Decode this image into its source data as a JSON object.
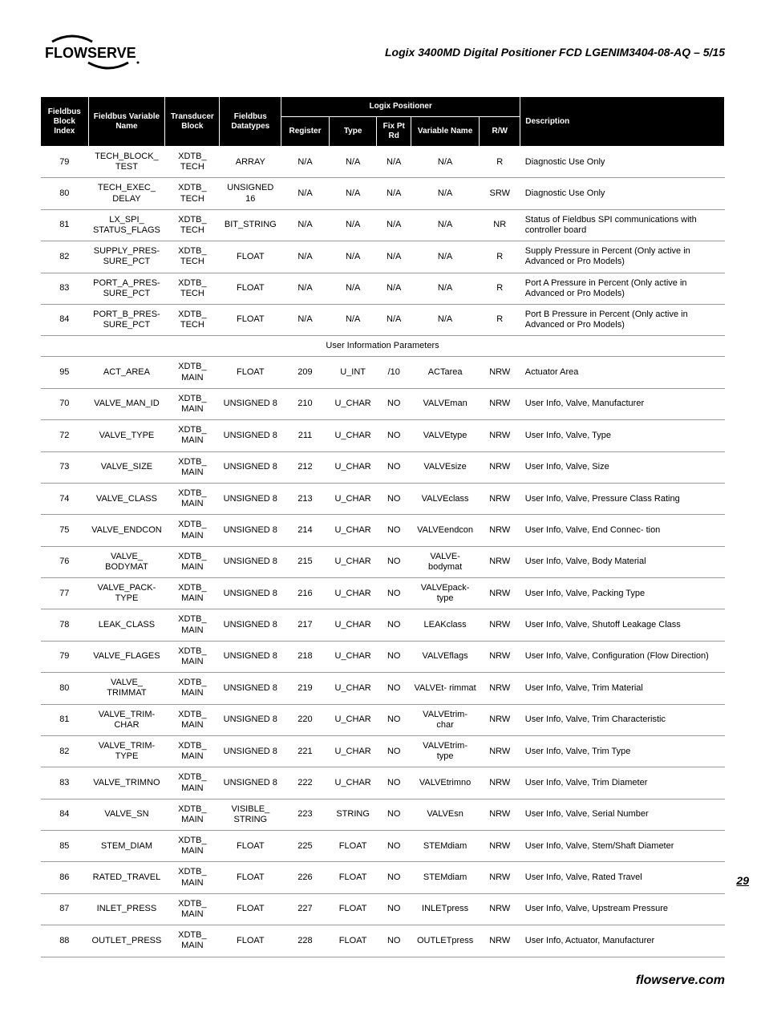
{
  "doc_title": "Logix 3400MD Digital Positioner FCD LGENIM3404-08-AQ – 5/15",
  "page_number": "29",
  "footer_text": "flowserve.com",
  "logo_text": "FLOWSERVE",
  "table": {
    "group_header": "Logix Positioner",
    "columns": [
      "Fieldbus Block Index",
      "Fieldbus Variable Name",
      "Transducer Block",
      "Fieldbus Datatypes",
      "Register",
      "Type",
      "Fix Pt Rd",
      "Variable Name",
      "R/W",
      "Description"
    ],
    "section_label": "User Information Parameters",
    "rows_a": [
      {
        "idx": "79",
        "varname": "TECH_BLOCK_ TEST",
        "block": "XDTB_ TECH",
        "dtype": "ARRAY",
        "reg": "N/A",
        "type": "N/A",
        "fix": "N/A",
        "vname": "N/A",
        "rw": "R",
        "desc": "Diagnostic Use Only"
      },
      {
        "idx": "80",
        "varname": "TECH_EXEC_ DELAY",
        "block": "XDTB_ TECH",
        "dtype": "UNSIGNED 16",
        "reg": "N/A",
        "type": "N/A",
        "fix": "N/A",
        "vname": "N/A",
        "rw": "SRW",
        "desc": "Diagnostic Use Only"
      },
      {
        "idx": "81",
        "varname": "LX_SPI_ STATUS_FLAGS",
        "block": "XDTB_ TECH",
        "dtype": "BIT_STRING",
        "reg": "N/A",
        "type": "N/A",
        "fix": "N/A",
        "vname": "N/A",
        "rw": "NR",
        "desc": "Status of Fieldbus SPI communications with controller board"
      },
      {
        "idx": "82",
        "varname": "SUPPLY_PRES- SURE_PCT",
        "block": "XDTB_ TECH",
        "dtype": "FLOAT",
        "reg": "N/A",
        "type": "N/A",
        "fix": "N/A",
        "vname": "N/A",
        "rw": "R",
        "desc": "Supply Pressure in Percent (Only active in Advanced or Pro Models)"
      },
      {
        "idx": "83",
        "varname": "PORT_A_PRES- SURE_PCT",
        "block": "XDTB_ TECH",
        "dtype": "FLOAT",
        "reg": "N/A",
        "type": "N/A",
        "fix": "N/A",
        "vname": "N/A",
        "rw": "R",
        "desc": "Port A Pressure in Percent (Only active in Advanced or Pro Models)"
      },
      {
        "idx": "84",
        "varname": "PORT_B_PRES- SURE_PCT",
        "block": "XDTB_ TECH",
        "dtype": "FLOAT",
        "reg": "N/A",
        "type": "N/A",
        "fix": "N/A",
        "vname": "N/A",
        "rw": "R",
        "desc": "Port B Pressure in Percent (Only active in Advanced or Pro Models)"
      }
    ],
    "rows_b": [
      {
        "idx": "95",
        "varname": "ACT_AREA",
        "block": "XDTB_ MAIN",
        "dtype": "FLOAT",
        "reg": "209",
        "type": "U_INT",
        "fix": "/10",
        "vname": "ACTarea",
        "rw": "NRW",
        "desc": "Actuator Area"
      },
      {
        "idx": "70",
        "varname": "VALVE_MAN_ID",
        "block": "XDTB_ MAIN",
        "dtype": "UNSIGNED 8",
        "reg": "210",
        "type": "U_CHAR",
        "fix": "NO",
        "vname": "VALVEman",
        "rw": "NRW",
        "desc": "User Info, Valve, Manufacturer"
      },
      {
        "idx": "72",
        "varname": "VALVE_TYPE",
        "block": "XDTB_ MAIN",
        "dtype": "UNSIGNED 8",
        "reg": "211",
        "type": "U_CHAR",
        "fix": "NO",
        "vname": "VALVEtype",
        "rw": "NRW",
        "desc": "User Info, Valve, Type"
      },
      {
        "idx": "73",
        "varname": "VALVE_SIZE",
        "block": "XDTB_ MAIN",
        "dtype": "UNSIGNED 8",
        "reg": "212",
        "type": "U_CHAR",
        "fix": "NO",
        "vname": "VALVEsize",
        "rw": "NRW",
        "desc": "User Info, Valve, Size"
      },
      {
        "idx": "74",
        "varname": "VALVE_CLASS",
        "block": "XDTB_ MAIN",
        "dtype": "UNSIGNED 8",
        "reg": "213",
        "type": "U_CHAR",
        "fix": "NO",
        "vname": "VALVEclass",
        "rw": "NRW",
        "desc": "User Info, Valve, Pressure Class Rating"
      },
      {
        "idx": "75",
        "varname": "VALVE_ENDCON",
        "block": "XDTB_ MAIN",
        "dtype": "UNSIGNED 8",
        "reg": "214",
        "type": "U_CHAR",
        "fix": "NO",
        "vname": "VALVEendcon",
        "rw": "NRW",
        "desc": "User Info, Valve, End Connec- tion"
      },
      {
        "idx": "76",
        "varname": "VALVE_ BODYMAT",
        "block": "XDTB_ MAIN",
        "dtype": "UNSIGNED 8",
        "reg": "215",
        "type": "U_CHAR",
        "fix": "NO",
        "vname": "VALVE- bodymat",
        "rw": "NRW",
        "desc": "User Info, Valve, Body Material"
      },
      {
        "idx": "77",
        "varname": "VALVE_PACK- TYPE",
        "block": "XDTB_ MAIN",
        "dtype": "UNSIGNED 8",
        "reg": "216",
        "type": "U_CHAR",
        "fix": "NO",
        "vname": "VALVEpack- type",
        "rw": "NRW",
        "desc": "User Info, Valve, Packing Type"
      },
      {
        "idx": "78",
        "varname": "LEAK_CLASS",
        "block": "XDTB_ MAIN",
        "dtype": "UNSIGNED 8",
        "reg": "217",
        "type": "U_CHAR",
        "fix": "NO",
        "vname": "LEAKclass",
        "rw": "NRW",
        "desc": "User Info, Valve, Shutoff Leakage Class"
      },
      {
        "idx": "79",
        "varname": "VALVE_FLAGES",
        "block": "XDTB_ MAIN",
        "dtype": "UNSIGNED 8",
        "reg": "218",
        "type": "U_CHAR",
        "fix": "NO",
        "vname": "VALVEflags",
        "rw": "NRW",
        "desc": "User Info, Valve, Configuration (Flow Direction)"
      },
      {
        "idx": "80",
        "varname": "VALVE_ TRIMMAT",
        "block": "XDTB_ MAIN",
        "dtype": "UNSIGNED 8",
        "reg": "219",
        "type": "U_CHAR",
        "fix": "NO",
        "vname": "VALVEt- rimmat",
        "rw": "NRW",
        "desc": "User Info, Valve, Trim Material"
      },
      {
        "idx": "81",
        "varname": "VALVE_TRIM- CHAR",
        "block": "XDTB_ MAIN",
        "dtype": "UNSIGNED 8",
        "reg": "220",
        "type": "U_CHAR",
        "fix": "NO",
        "vname": "VALVEtrim- char",
        "rw": "NRW",
        "desc": "User Info, Valve, Trim Characteristic"
      },
      {
        "idx": "82",
        "varname": "VALVE_TRIM- TYPE",
        "block": "XDTB_ MAIN",
        "dtype": "UNSIGNED 8",
        "reg": "221",
        "type": "U_CHAR",
        "fix": "NO",
        "vname": "VALVEtrim- type",
        "rw": "NRW",
        "desc": "User Info, Valve, Trim Type"
      },
      {
        "idx": "83",
        "varname": "VALVE_TRIMNO",
        "block": "XDTB_ MAIN",
        "dtype": "UNSIGNED 8",
        "reg": "222",
        "type": "U_CHAR",
        "fix": "NO",
        "vname": "VALVEtrimno",
        "rw": "NRW",
        "desc": "User Info, Valve, Trim Diameter"
      },
      {
        "idx": "84",
        "varname": "VALVE_SN",
        "block": "XDTB_ MAIN",
        "dtype": "VISIBLE_ STRING",
        "reg": "223",
        "type": "STRING",
        "fix": "NO",
        "vname": "VALVEsn",
        "rw": "NRW",
        "desc": "User Info, Valve, Serial Number"
      },
      {
        "idx": "85",
        "varname": "STEM_DIAM",
        "block": "XDTB_ MAIN",
        "dtype": "FLOAT",
        "reg": "225",
        "type": "FLOAT",
        "fix": "NO",
        "vname": "STEMdiam",
        "rw": "NRW",
        "desc": "User Info, Valve, Stem/Shaft Diameter"
      },
      {
        "idx": "86",
        "varname": "RATED_TRAVEL",
        "block": "XDTB_ MAIN",
        "dtype": "FLOAT",
        "reg": "226",
        "type": "FLOAT",
        "fix": "NO",
        "vname": "STEMdiam",
        "rw": "NRW",
        "desc": "User Info, Valve, Rated Travel"
      },
      {
        "idx": "87",
        "varname": "INLET_PRESS",
        "block": "XDTB_ MAIN",
        "dtype": "FLOAT",
        "reg": "227",
        "type": "FLOAT",
        "fix": "NO",
        "vname": "INLETpress",
        "rw": "NRW",
        "desc": "User Info, Valve, Upstream Pressure"
      },
      {
        "idx": "88",
        "varname": "OUTLET_PRESS",
        "block": "XDTB_ MAIN",
        "dtype": "FLOAT",
        "reg": "228",
        "type": "FLOAT",
        "fix": "NO",
        "vname": "OUTLETpress",
        "rw": "NRW",
        "desc": "User Info, Actuator, Manufacturer"
      }
    ]
  }
}
